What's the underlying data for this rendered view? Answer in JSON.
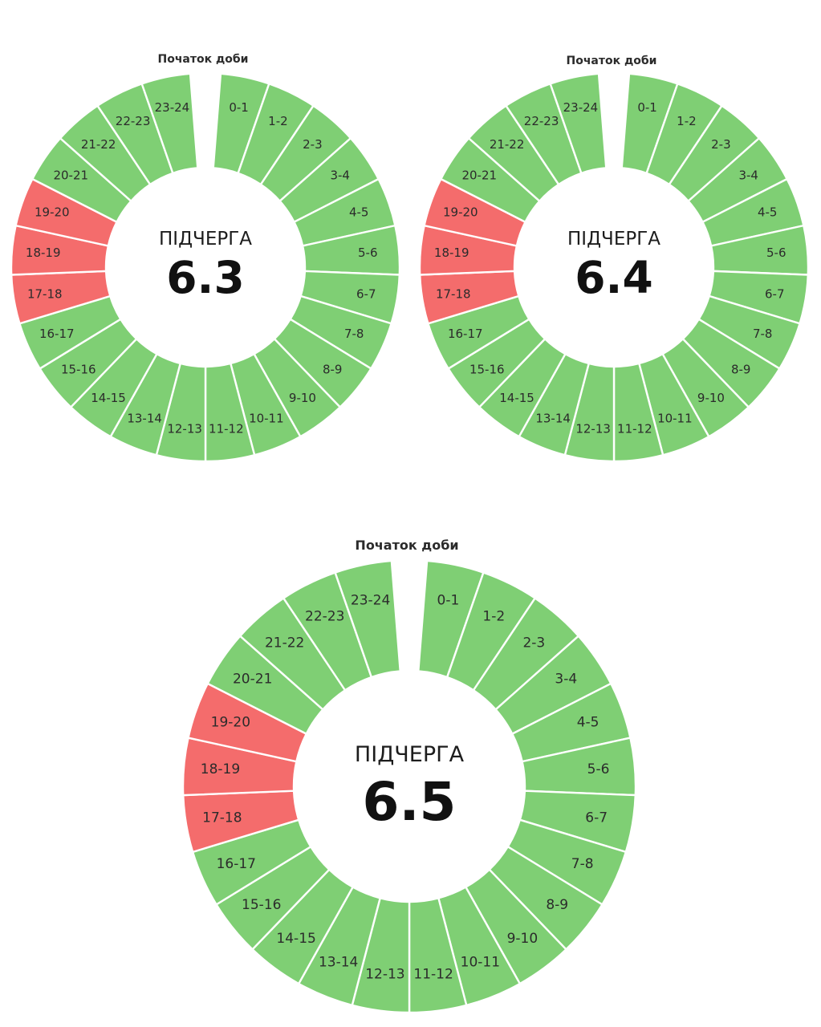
{
  "colors": {
    "on": "#7fcf74",
    "off": "#f46c6c",
    "divider": "#ffffff"
  },
  "chart_data": [
    {
      "type": "pie",
      "subtype": "donut-schedule",
      "title": "ПІДЧЕРГА",
      "queue": "6.3",
      "start_label": "Початок доби",
      "categories": [
        "0-1",
        "1-2",
        "2-3",
        "3-4",
        "4-5",
        "5-6",
        "6-7",
        "7-8",
        "8-9",
        "9-10",
        "10-11",
        "11-12",
        "12-13",
        "13-14",
        "14-15",
        "15-16",
        "16-17",
        "17-18",
        "18-19",
        "19-20",
        "20-21",
        "21-22",
        "22-23",
        "23-24"
      ],
      "status": [
        "on",
        "on",
        "on",
        "on",
        "on",
        "on",
        "on",
        "on",
        "on",
        "on",
        "on",
        "on",
        "on",
        "on",
        "on",
        "on",
        "on",
        "off",
        "off",
        "off",
        "on",
        "on",
        "on",
        "on"
      ]
    },
    {
      "type": "pie",
      "subtype": "donut-schedule",
      "title": "ПІДЧЕРГА",
      "queue": "6.4",
      "start_label": "Початок доби",
      "categories": [
        "0-1",
        "1-2",
        "2-3",
        "3-4",
        "4-5",
        "5-6",
        "6-7",
        "7-8",
        "8-9",
        "9-10",
        "10-11",
        "11-12",
        "12-13",
        "13-14",
        "14-15",
        "15-16",
        "16-17",
        "17-18",
        "18-19",
        "19-20",
        "20-21",
        "21-22",
        "22-23",
        "23-24"
      ],
      "status": [
        "on",
        "on",
        "on",
        "on",
        "on",
        "on",
        "on",
        "on",
        "on",
        "on",
        "on",
        "on",
        "on",
        "on",
        "on",
        "on",
        "on",
        "off",
        "off",
        "off",
        "on",
        "on",
        "on",
        "on"
      ]
    },
    {
      "type": "pie",
      "subtype": "donut-schedule",
      "title": "ПІДЧЕРГА",
      "queue": "6.5",
      "start_label": "Початок доби",
      "categories": [
        "0-1",
        "1-2",
        "2-3",
        "3-4",
        "4-5",
        "5-6",
        "6-7",
        "7-8",
        "8-9",
        "9-10",
        "10-11",
        "11-12",
        "12-13",
        "13-14",
        "14-15",
        "15-16",
        "16-17",
        "17-18",
        "18-19",
        "19-20",
        "20-21",
        "21-22",
        "22-23",
        "23-24"
      ],
      "status": [
        "on",
        "on",
        "on",
        "on",
        "on",
        "on",
        "on",
        "on",
        "on",
        "on",
        "on",
        "on",
        "on",
        "on",
        "on",
        "on",
        "on",
        "off",
        "off",
        "off",
        "on",
        "on",
        "on",
        "on"
      ]
    }
  ]
}
